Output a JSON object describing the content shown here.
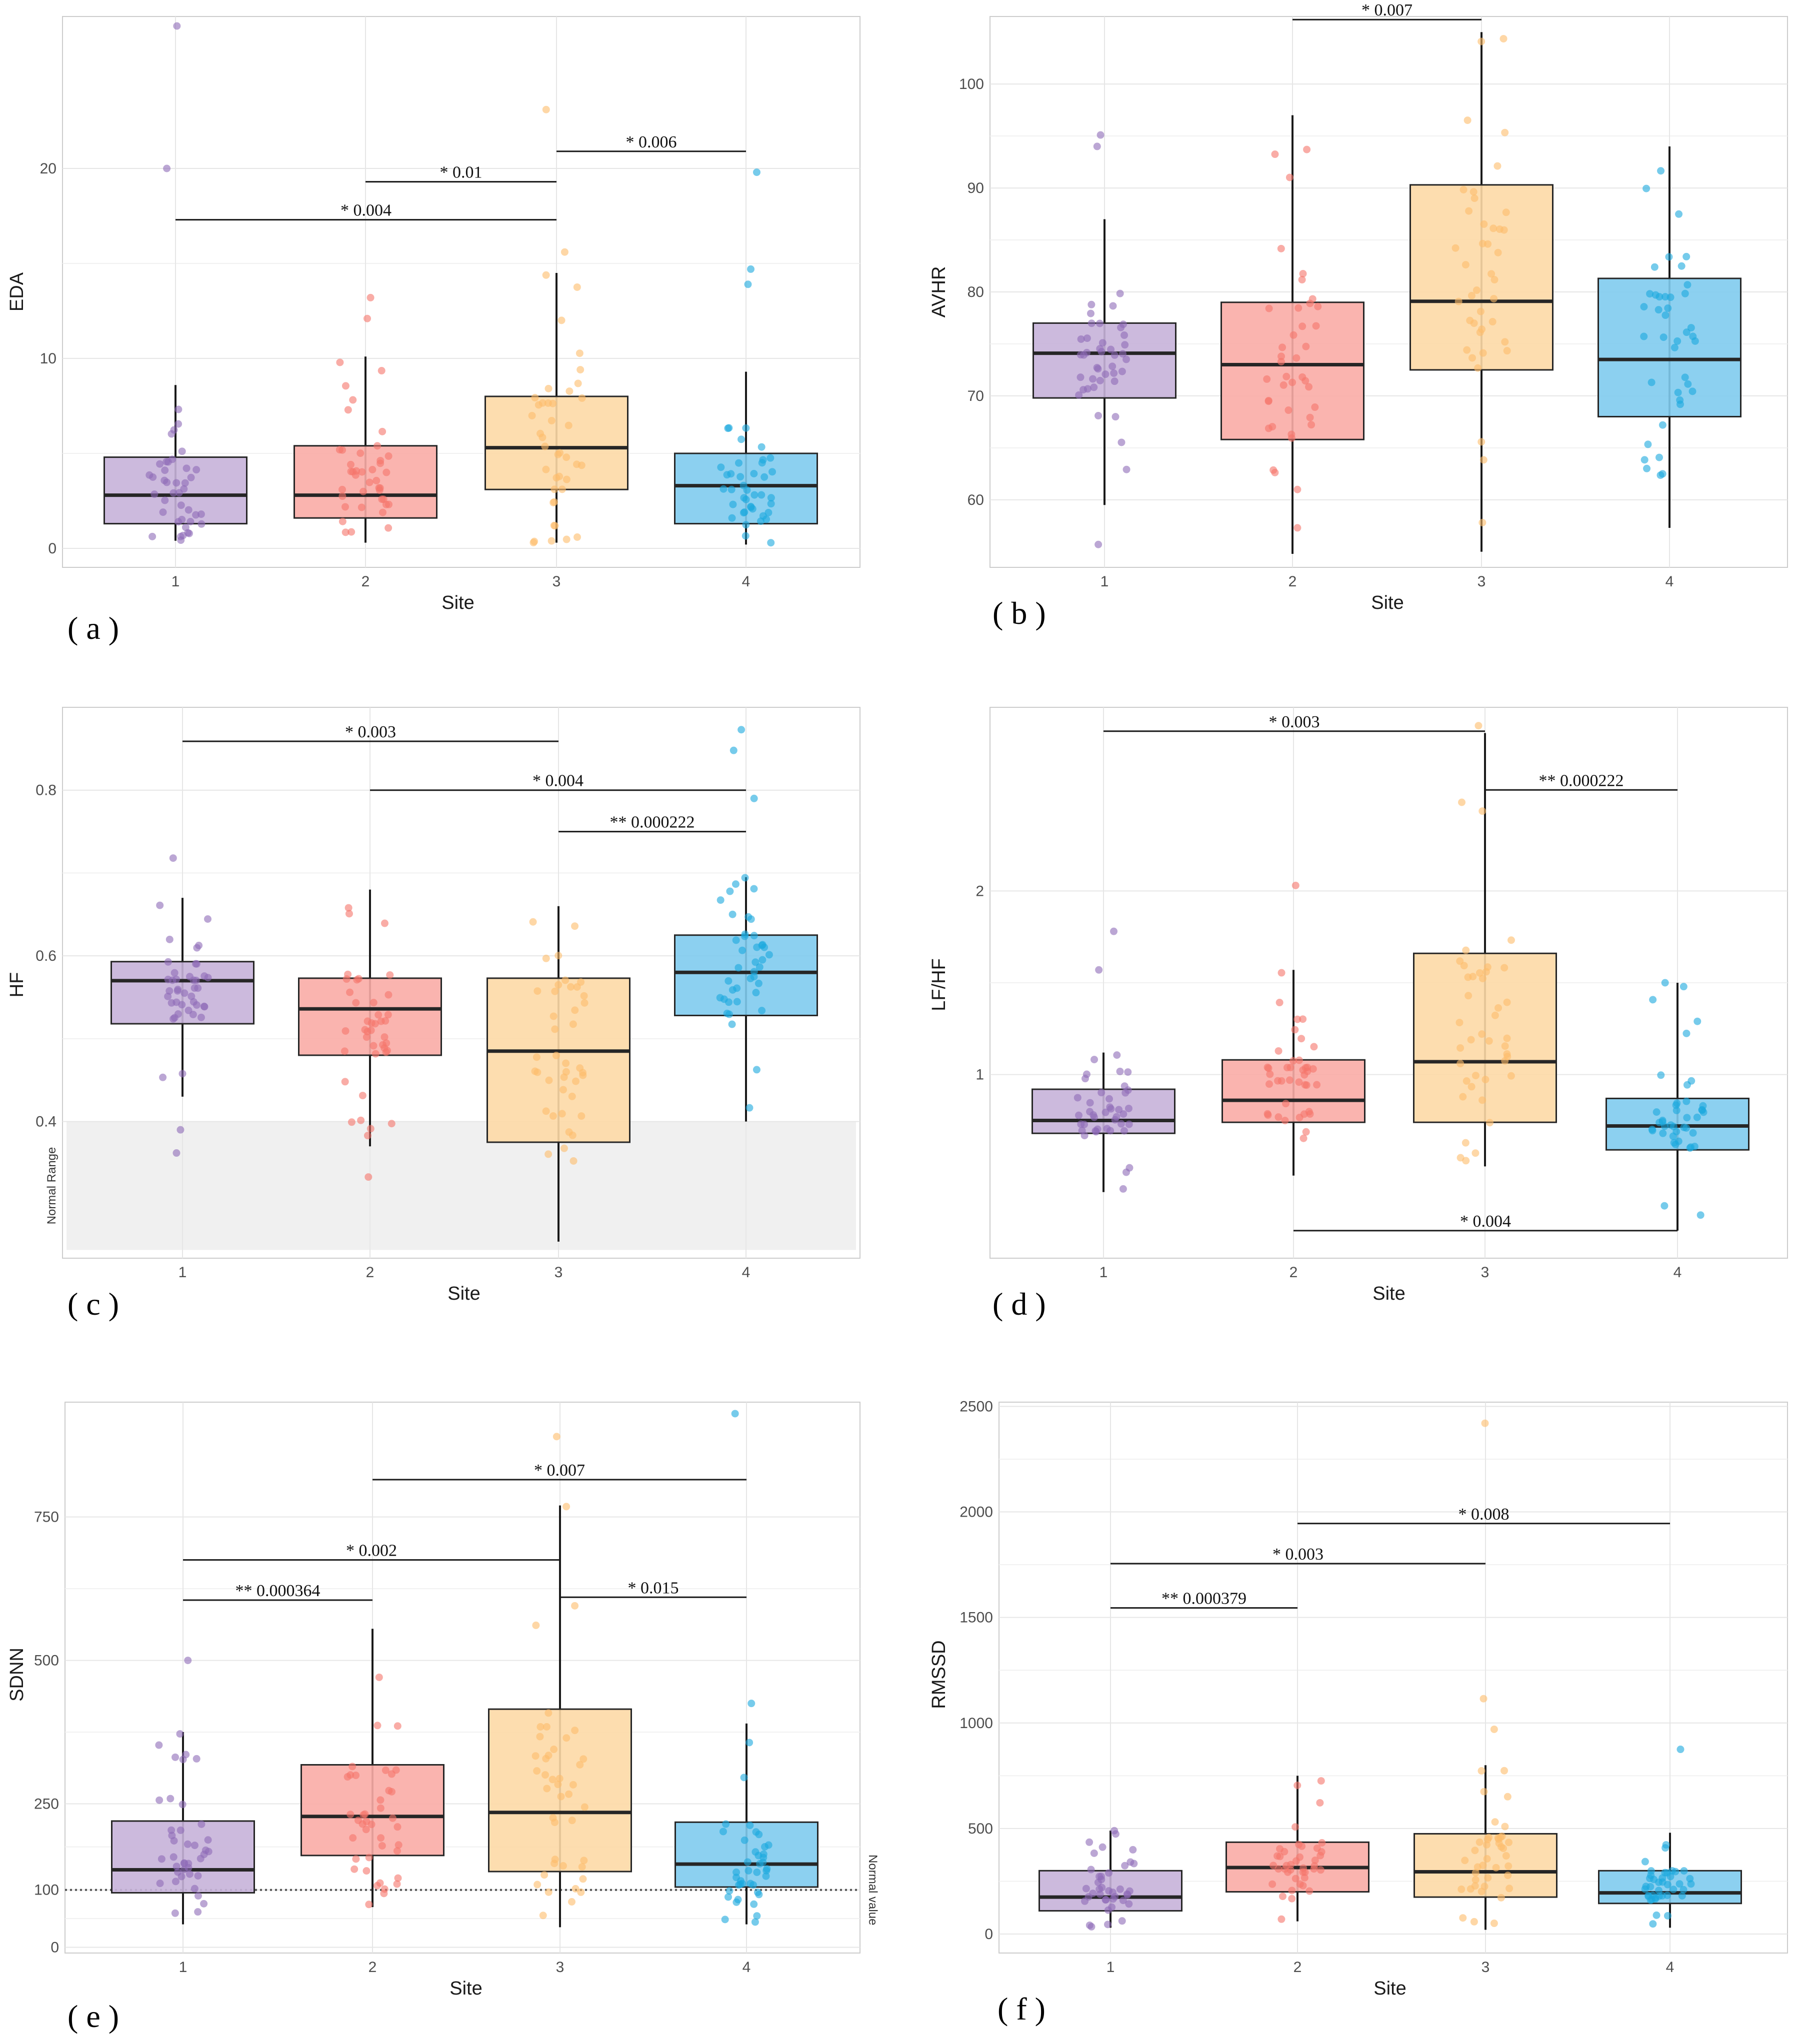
{
  "figure": {
    "x_title": "Site"
  },
  "colors": {
    "site1": "#8e6bb8",
    "site1_fill": "#c7b3d9",
    "site2": "#f5756b",
    "site2_fill": "#f9aca6",
    "site3": "#fdbd6a",
    "site3_fill": "#fdd9a6",
    "site4": "#1aa8dd",
    "site4_fill": "#7fcbee",
    "grid": "#e6e6e6",
    "panel_border": "#cccccc"
  },
  "chart_data": [
    {
      "id": "a",
      "type": "boxplot",
      "panel_label": "( a )",
      "ylabel": "EDA",
      "xlabel": "Site",
      "categories": [
        "1",
        "2",
        "3",
        "4"
      ],
      "ylim": [
        -1,
        28
      ],
      "yticks": [
        0,
        10,
        20
      ],
      "boxes": [
        {
          "q1": 1.3,
          "median": 2.8,
          "q3": 4.8,
          "wlo": 0.4,
          "whi": 8.6
        },
        {
          "q1": 1.6,
          "median": 2.8,
          "q3": 5.4,
          "wlo": 0.3,
          "whi": 10.1
        },
        {
          "q1": 3.1,
          "median": 5.3,
          "q3": 8.0,
          "wlo": 0.3,
          "whi": 14.5
        },
        {
          "q1": 1.3,
          "median": 3.3,
          "q3": 5.0,
          "wlo": 0.2,
          "whi": 9.3
        }
      ],
      "outliers": [
        [
          1,
          27.5
        ],
        [
          1,
          20.0
        ],
        [
          3,
          23.1
        ],
        [
          3,
          15.6
        ],
        [
          4,
          19.8
        ],
        [
          4,
          14.7
        ],
        [
          4,
          13.9
        ],
        [
          2,
          13.2
        ],
        [
          2,
          12.1
        ]
      ],
      "comparisons": [
        {
          "from": 1,
          "to": 3,
          "y": 17.3,
          "label": "* 0.004"
        },
        {
          "from": 2,
          "to": 3,
          "y": 19.3,
          "label": "* 0.01"
        },
        {
          "from": 3,
          "to": 4,
          "y": 20.9,
          "label": "* 0.006"
        }
      ]
    },
    {
      "id": "b",
      "type": "boxplot",
      "panel_label": "( b )",
      "ylabel": "AVHR",
      "xlabel": "Site",
      "categories": [
        "1",
        "2",
        "3",
        "4"
      ],
      "ylim": [
        53.5,
        106.5
      ],
      "yticks": [
        60,
        70,
        80,
        90,
        100
      ],
      "boxes": [
        {
          "q1": 69.8,
          "median": 74.1,
          "q3": 77.0,
          "wlo": 59.5,
          "whi": 87.0
        },
        {
          "q1": 65.8,
          "median": 73.0,
          "q3": 79.0,
          "wlo": 54.8,
          "whi": 97.0
        },
        {
          "q1": 72.5,
          "median": 79.1,
          "q3": 90.3,
          "wlo": 55.0,
          "whi": 105.0
        },
        {
          "q1": 68.0,
          "median": 73.5,
          "q3": 81.3,
          "wlo": 57.3,
          "whi": 94.0
        }
      ],
      "outliers": [
        [
          1,
          95.1
        ],
        [
          1,
          94.0
        ],
        [
          1,
          55.7
        ]
      ],
      "comparisons": [
        {
          "from": 2,
          "to": 3,
          "y": 106.2,
          "label": "* 0.007"
        }
      ]
    },
    {
      "id": "c",
      "type": "boxplot",
      "panel_label": "( c )",
      "ylabel": "HF",
      "xlabel": "Site",
      "categories": [
        "1",
        "2",
        "3",
        "4"
      ],
      "ylim": [
        0.235,
        0.9
      ],
      "yticks": [
        0.4,
        0.6,
        0.8
      ],
      "reference_band": {
        "from": 0.245,
        "to": 0.4,
        "label": "Normal Range"
      },
      "boxes": [
        {
          "q1": 0.518,
          "median": 0.57,
          "q3": 0.593,
          "wlo": 0.43,
          "whi": 0.67
        },
        {
          "q1": 0.48,
          "median": 0.536,
          "q3": 0.573,
          "wlo": 0.37,
          "whi": 0.68
        },
        {
          "q1": 0.375,
          "median": 0.485,
          "q3": 0.573,
          "wlo": 0.255,
          "whi": 0.66
        },
        {
          "q1": 0.528,
          "median": 0.58,
          "q3": 0.625,
          "wlo": 0.4,
          "whi": 0.695
        }
      ],
      "outliers": [
        [
          1,
          0.718
        ],
        [
          1,
          0.362
        ],
        [
          1,
          0.39
        ],
        [
          2,
          0.333
        ],
        [
          4,
          0.873
        ],
        [
          4,
          0.848
        ],
        [
          4,
          0.79
        ]
      ],
      "comparisons": [
        {
          "from": 1,
          "to": 3,
          "y": 0.859,
          "label": "* 0.003"
        },
        {
          "from": 2,
          "to": 4,
          "y": 0.8,
          "label": "* 0.004"
        },
        {
          "from": 3,
          "to": 4,
          "y": 0.75,
          "label": "** 0.000222"
        }
      ]
    },
    {
      "id": "d",
      "type": "boxplot",
      "panel_label": "( d )",
      "ylabel": "LF/HF",
      "xlabel": "Site",
      "categories": [
        "1",
        "2",
        "3",
        "4"
      ],
      "ylim": [
        0.0,
        3.0
      ],
      "yticks": [
        1,
        2
      ],
      "boxes": [
        {
          "q1": 0.68,
          "median": 0.75,
          "q3": 0.92,
          "wlo": 0.36,
          "whi": 1.12
        },
        {
          "q1": 0.74,
          "median": 0.86,
          "q3": 1.08,
          "wlo": 0.45,
          "whi": 1.57
        },
        {
          "q1": 0.74,
          "median": 1.07,
          "q3": 1.66,
          "wlo": 0.5,
          "whi": 2.86
        },
        {
          "q1": 0.59,
          "median": 0.72,
          "q3": 0.87,
          "wlo": 0.15,
          "whi": 1.5
        }
      ],
      "outliers": [
        [
          1,
          1.78
        ],
        [
          1,
          1.57
        ],
        [
          2,
          2.03
        ],
        [
          3,
          2.9
        ],
        [
          4,
          1.5
        ]
      ],
      "comparisons": [
        {
          "from": 1,
          "to": 3,
          "y": 2.87,
          "label": "* 0.003"
        },
        {
          "from": 3,
          "to": 4,
          "y": 2.55,
          "label": "** 0.000222"
        },
        {
          "from": 2,
          "to": 4,
          "y": 0.15,
          "label": "* 0.004"
        }
      ]
    },
    {
      "id": "e",
      "type": "boxplot",
      "panel_label": "( e )",
      "ylabel": "SDNN",
      "xlabel": "Site",
      "categories": [
        "1",
        "2",
        "3",
        "4"
      ],
      "ylim": [
        -10,
        950
      ],
      "yticks": [
        0,
        100,
        250,
        500,
        750
      ],
      "reference_line": {
        "y": 100,
        "label": "Normal value"
      },
      "boxes": [
        {
          "q1": 95,
          "median": 135,
          "q3": 220,
          "wlo": 40,
          "whi": 375
        },
        {
          "q1": 160,
          "median": 228,
          "q3": 318,
          "wlo": 70,
          "whi": 555
        },
        {
          "q1": 132,
          "median": 235,
          "q3": 415,
          "wlo": 35,
          "whi": 770
        },
        {
          "q1": 105,
          "median": 145,
          "q3": 218,
          "wlo": 40,
          "whi": 390
        }
      ],
      "outliers": [
        [
          1,
          500
        ],
        [
          3,
          890
        ],
        [
          3,
          768
        ],
        [
          4,
          930
        ],
        [
          4,
          425
        ]
      ],
      "comparisons": [
        {
          "from": 2,
          "to": 4,
          "y": 815,
          "label": "* 0.007"
        },
        {
          "from": 1,
          "to": 3,
          "y": 675,
          "label": "* 0.002"
        },
        {
          "from": 1,
          "to": 2,
          "y": 605,
          "label": "** 0.000364"
        },
        {
          "from": 3,
          "to": 4,
          "y": 610,
          "label": "* 0.015"
        }
      ]
    },
    {
      "id": "f",
      "type": "boxplot",
      "panel_label": "( f )",
      "ylabel": "RMSSD",
      "xlabel": "Site",
      "categories": [
        "1",
        "2",
        "3",
        "4"
      ],
      "ylim": [
        -90,
        2520
      ],
      "yticks": [
        0,
        500,
        1000,
        1500,
        2000,
        2500
      ],
      "boxes": [
        {
          "q1": 110,
          "median": 175,
          "q3": 300,
          "wlo": 30,
          "whi": 490
        },
        {
          "q1": 200,
          "median": 315,
          "q3": 435,
          "wlo": 60,
          "whi": 750
        },
        {
          "q1": 175,
          "median": 295,
          "q3": 475,
          "wlo": 20,
          "whi": 800
        },
        {
          "q1": 145,
          "median": 195,
          "q3": 300,
          "wlo": 30,
          "whi": 480
        }
      ],
      "outliers": [
        [
          3,
          2420
        ],
        [
          3,
          1115
        ],
        [
          4,
          875
        ],
        [
          3,
          970
        ]
      ],
      "comparisons": [
        {
          "from": 2,
          "to": 4,
          "y": 1945,
          "label": "* 0.008"
        },
        {
          "from": 1,
          "to": 3,
          "y": 1755,
          "label": "* 0.003"
        },
        {
          "from": 1,
          "to": 2,
          "y": 1545,
          "label": "** 0.000379"
        }
      ]
    }
  ]
}
